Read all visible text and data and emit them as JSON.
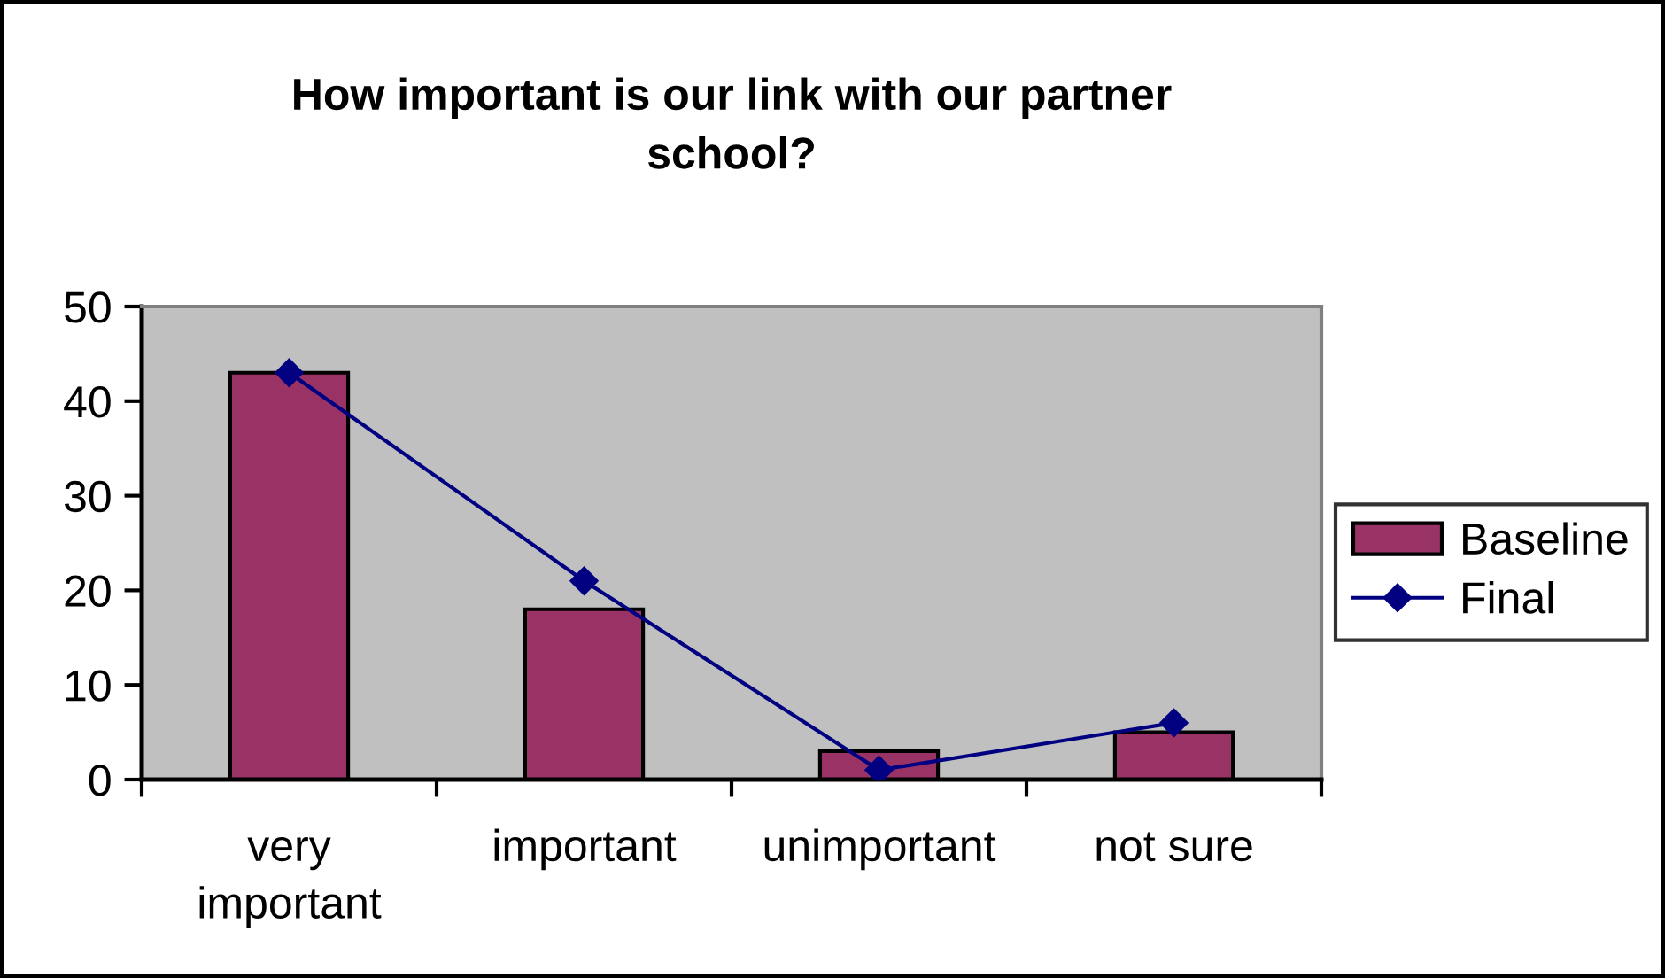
{
  "chart_data": {
    "type": "bar",
    "title": "How important is our link with our partner school?",
    "categories": [
      "very important",
      "important",
      "unimportant",
      "not sure"
    ],
    "series": [
      {
        "name": "Baseline",
        "color": "#993366",
        "values": [
          43,
          18,
          3,
          5
        ]
      },
      {
        "name": "Final",
        "type": "line",
        "color": "#000080",
        "values": [
          43,
          21,
          1,
          6
        ],
        "marker": "diamond",
        "line_style": "solid"
      }
    ],
    "ylim": [
      0,
      50
    ],
    "yticks": [
      0,
      10,
      20,
      30,
      40,
      50
    ],
    "legend": "right"
  }
}
